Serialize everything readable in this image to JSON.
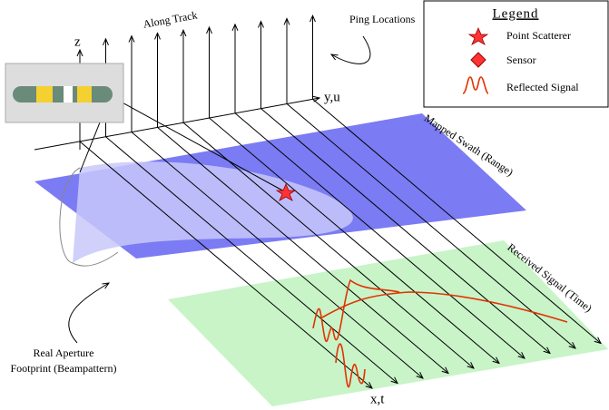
{
  "axes": {
    "z": "z",
    "y": "y,u",
    "x": "x,t"
  },
  "labels": {
    "along_track": "Along Track",
    "ping_locations": "Ping Locations",
    "mapped_swath": "Mapped Swath (Range)",
    "received_signal": "Received Signal (Time)",
    "aperture_line1": "Real Aperture",
    "aperture_line2": "Footprint (Beampattern)"
  },
  "legend": {
    "title": "Legend",
    "items": [
      "Point Scatterer",
      "Sensor",
      "Reflected Signal"
    ]
  }
}
